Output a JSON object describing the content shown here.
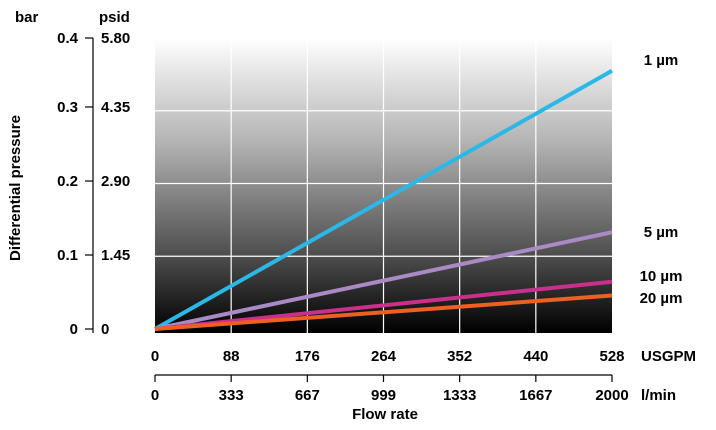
{
  "chart_data": {
    "type": "line",
    "xlabel": "Flow rate",
    "ylabel": "Differential pressure",
    "x_units": [
      "USGPM",
      "l/min"
    ],
    "y_units": [
      "bar",
      "psid"
    ],
    "x_ticks_usgpm": [
      "0",
      "88",
      "176",
      "264",
      "352",
      "440",
      "528"
    ],
    "x_ticks_lmin": [
      "0",
      "333",
      "667",
      "999",
      "1333",
      "1667",
      "2000"
    ],
    "y_ticks_bar": [
      "0",
      "0.1",
      "0.2",
      "0.3",
      "0.4"
    ],
    "y_ticks_psid": [
      "0",
      "1.45",
      "2.90",
      "4.35",
      "5.80"
    ],
    "xlim": [
      0,
      2000
    ],
    "ylim": [
      0,
      0.4
    ],
    "grid": true,
    "background": "vertical gradient, light gray top to black bottom",
    "series": [
      {
        "name": "1 µm",
        "color": "#2bb8e6",
        "x": [
          0,
          2000
        ],
        "y": [
          0,
          0.355
        ]
      },
      {
        "name": "5 µm",
        "color": "#a98ac4",
        "x": [
          0,
          2000
        ],
        "y": [
          0,
          0.133
        ]
      },
      {
        "name": "10 µm",
        "color": "#c8308c",
        "x": [
          0,
          2000
        ],
        "y": [
          0,
          0.065
        ]
      },
      {
        "name": "20 µm",
        "color": "#ee5f22",
        "x": [
          0,
          2000
        ],
        "y": [
          0,
          0.046
        ]
      }
    ]
  }
}
